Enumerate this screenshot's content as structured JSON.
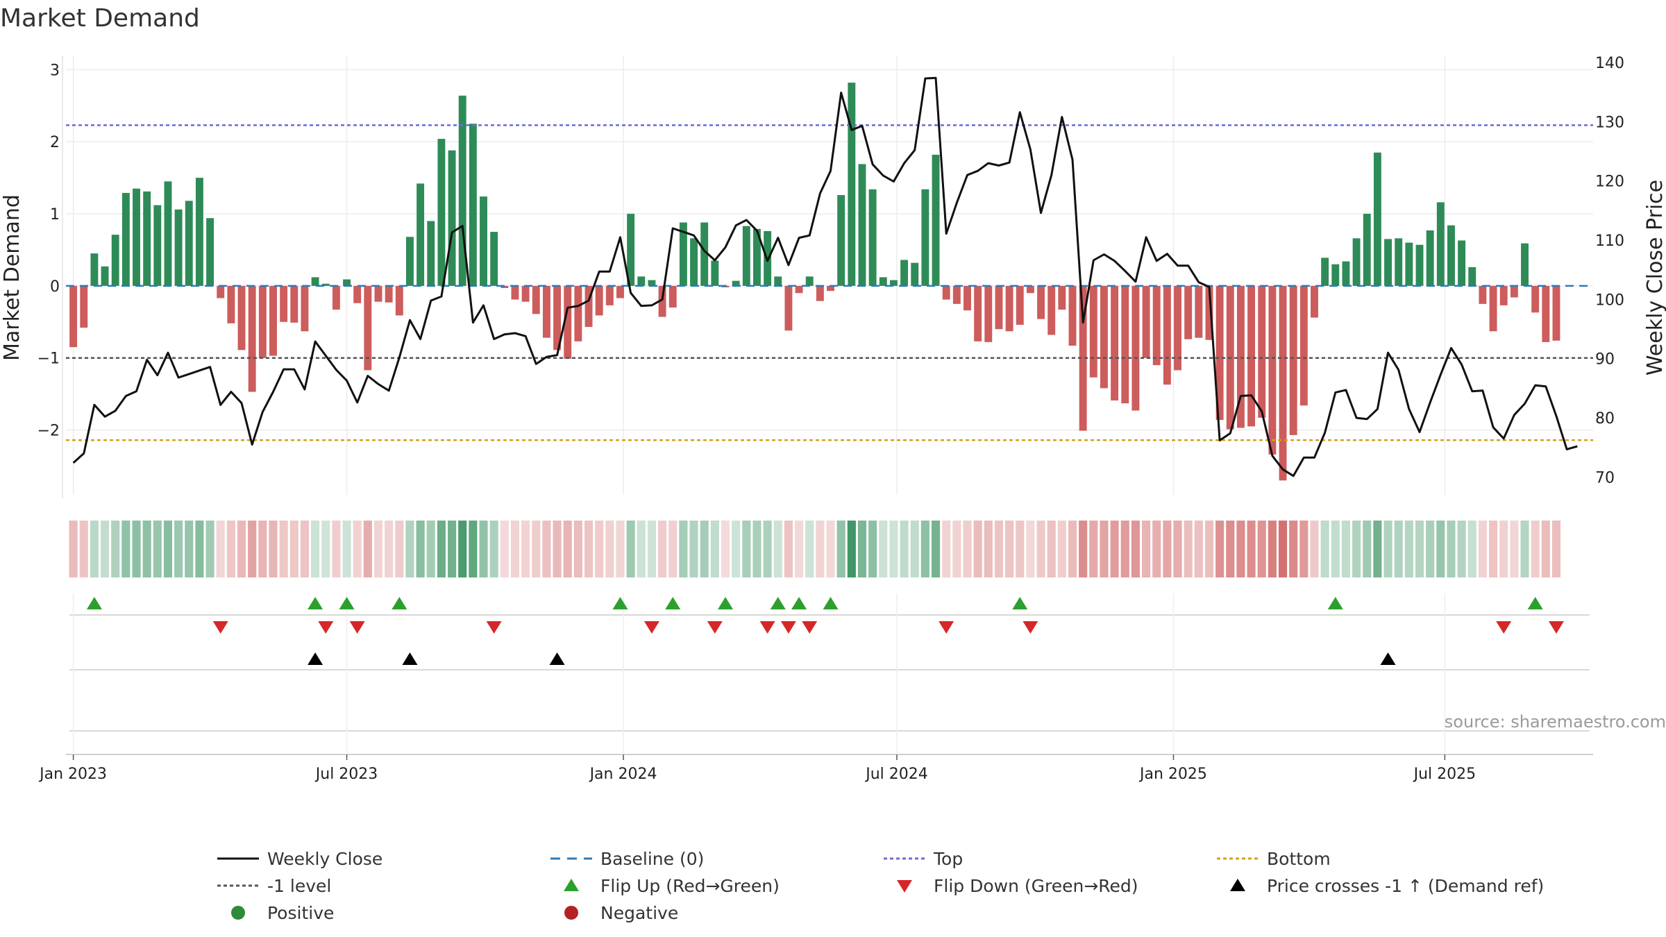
{
  "chart_data": {
    "type": "bar+line",
    "title": "Market Demand",
    "ylabel_left": "Market Demand",
    "ylabel_right": "Weekly Close Price",
    "ylim_left": [
      -2.9,
      3.1
    ],
    "ylim_right": [
      67,
      140
    ],
    "yticks_left": [
      3,
      2,
      1,
      0,
      -1,
      -2
    ],
    "ytick_labels_left": [
      "3",
      "2",
      "1",
      "0",
      "−1",
      "−2"
    ],
    "yticks_right": [
      140,
      130,
      120,
      110,
      100,
      90,
      80,
      70
    ],
    "ytick_labels_right": [
      "140",
      "130",
      "120",
      "110",
      "100",
      "90",
      "80",
      "70"
    ],
    "x_range_weeks": [
      -0.7,
      144.5
    ],
    "xtick_weeks": [
      0,
      26,
      52.3,
      78.3,
      104.6,
      130.4
    ],
    "xtick_labels": [
      "Jan 2023",
      "Jul 2023",
      "Jan 2024",
      "Jul 2024",
      "Jan 2025",
      "Jul 2025"
    ],
    "reference_lines": {
      "top": 2.23,
      "bottom": -2.14,
      "minus_one": -1,
      "baseline": 0
    },
    "demand": [
      -0.85,
      -0.58,
      0.45,
      0.27,
      0.71,
      1.29,
      1.35,
      1.31,
      1.12,
      1.45,
      1.06,
      1.18,
      1.5,
      0.94,
      -0.17,
      -0.52,
      -0.89,
      -1.47,
      -1.0,
      -0.97,
      -0.5,
      -0.51,
      -0.63,
      0.12,
      0.03,
      -0.33,
      0.09,
      -0.24,
      -1.17,
      -0.22,
      -0.23,
      -0.41,
      0.68,
      1.42,
      0.9,
      2.04,
      1.88,
      2.64,
      2.25,
      1.24,
      0.75,
      -0.03,
      -0.19,
      -0.22,
      -0.39,
      -0.72,
      -0.89,
      -1.01,
      -0.77,
      -0.57,
      -0.41,
      -0.27,
      -0.17,
      1.0,
      0.13,
      0.08,
      -0.43,
      -0.3,
      0.88,
      0.66,
      0.88,
      0.35,
      -0.02,
      0.07,
      0.83,
      0.79,
      0.76,
      0.13,
      -0.62,
      -0.1,
      0.13,
      -0.21,
      -0.07,
      1.26,
      2.82,
      1.69,
      1.34,
      0.12,
      0.08,
      0.36,
      0.32,
      1.34,
      1.82,
      -0.19,
      -0.25,
      -0.34,
      -0.77,
      -0.78,
      -0.6,
      -0.63,
      -0.54,
      -0.1,
      -0.46,
      -0.68,
      -0.33,
      -0.83,
      -2.01,
      -1.27,
      -1.42,
      -1.59,
      -1.63,
      -1.73,
      -1.0,
      -1.1,
      -1.37,
      -1.17,
      -0.74,
      -0.72,
      -0.75,
      -1.86,
      -1.99,
      -1.97,
      -1.95,
      -1.83,
      -2.34,
      -2.7,
      -2.07,
      -1.66,
      -0.44,
      0.39,
      0.3,
      0.34,
      0.66,
      1.0,
      1.85,
      0.65,
      0.66,
      0.6,
      0.57,
      0.77,
      1.16,
      0.84,
      0.63,
      0.26,
      -0.25,
      -0.63,
      -0.27,
      -0.16,
      0.59,
      -0.37,
      -0.78,
      -0.76
    ],
    "weekly_close": [
      72.4,
      74.0,
      82.2,
      80.2,
      81.2,
      83.7,
      84.5,
      89.8,
      87.2,
      91.0,
      86.8,
      87.4,
      88.0,
      88.6,
      82.2,
      84.4,
      82.5,
      75.5,
      81.0,
      84.4,
      88.2,
      88.2,
      84.8,
      92.9,
      90.5,
      88.1,
      86.3,
      82.6,
      87.1,
      85.7,
      84.6,
      90.2,
      96.5,
      93.3,
      99.8,
      100.5,
      111.3,
      112.4,
      96.1,
      99.0,
      93.3,
      94.1,
      94.3,
      93.8,
      89.1,
      90.3,
      90.6,
      98.6,
      98.9,
      99.8,
      104.7,
      104.7,
      110.5,
      101.1,
      98.9,
      99.0,
      100.0,
      112.0,
      111.4,
      110.8,
      108.2,
      106.6,
      108.8,
      112.5,
      113.4,
      111.6,
      106.5,
      110.4,
      105.8,
      110.4,
      110.8,
      117.9,
      121.7,
      134.9,
      128.6,
      129.3,
      122.8,
      120.9,
      119.9,
      123.0,
      125.2,
      137.3,
      137.4,
      111.1,
      116.3,
      121.0,
      121.7,
      123.0,
      122.6,
      123.1,
      131.6,
      125.3,
      114.6,
      121.0,
      130.8,
      123.6,
      96.1,
      106.6,
      107.6,
      106.5,
      104.8,
      103.0,
      110.5,
      106.5,
      107.7,
      105.7,
      105.7,
      102.9,
      102.1,
      76.2,
      77.4,
      83.7,
      83.8,
      81.1,
      73.6,
      71.3,
      70.2,
      73.3,
      73.3,
      77.5,
      84.3,
      84.7,
      80.0,
      79.8,
      81.5,
      91.0,
      88.1,
      81.5,
      77.6,
      82.6,
      87.3,
      91.8,
      89.0,
      84.5,
      84.6,
      78.4,
      76.5,
      80.5,
      82.4,
      85.5,
      85.3,
      80.3,
      74.7,
      75.2
    ],
    "flip_up_weeks": [
      2,
      23,
      26,
      31,
      52,
      57,
      62,
      67,
      69,
      72,
      90,
      120,
      139
    ],
    "flip_down_weeks": [
      14,
      24,
      27,
      40,
      55,
      61,
      66,
      68,
      70,
      83,
      91,
      136,
      141
    ],
    "price_cross_weeks": [
      23,
      32,
      46,
      125
    ],
    "source": "source: sharemaestro.com",
    "legend": [
      {
        "label": "Weekly Close",
        "symbol": "solid-line",
        "color": "#111111"
      },
      {
        "label": "Baseline (0)",
        "symbol": "dashed-line",
        "color": "#2b7bba"
      },
      {
        "label": "Top",
        "symbol": "dotted-line",
        "color": "#6b6bd6"
      },
      {
        "label": "Bottom",
        "symbol": "dotted-line",
        "color": "#d4a017"
      },
      {
        "label": "-1 level",
        "symbol": "dotted-line",
        "color": "#555555"
      },
      {
        "label": "Flip Up (Red→Green)",
        "symbol": "triangle-up",
        "color": "#2ca02c"
      },
      {
        "label": "Flip Down (Green→Red)",
        "symbol": "triangle-down",
        "color": "#d62728"
      },
      {
        "label": "Price crosses -1 ↑ (Demand ref)",
        "symbol": "triangle-up",
        "color": "#000000"
      },
      {
        "label": "Positive",
        "symbol": "circle",
        "color": "#2e8b3a"
      },
      {
        "label": "Negative",
        "symbol": "circle",
        "color": "#b22222"
      }
    ]
  },
  "colors": {
    "positive_bar": "#2e8b57",
    "negative_bar": "#cd5c5c",
    "line": "#111111",
    "top": "#6b6bd6",
    "bottom": "#d4a017",
    "minus_one": "#555555",
    "baseline": "#2b7bba",
    "flip_up": "#2ca02c",
    "flip_down": "#d62728",
    "cross": "#000000"
  }
}
